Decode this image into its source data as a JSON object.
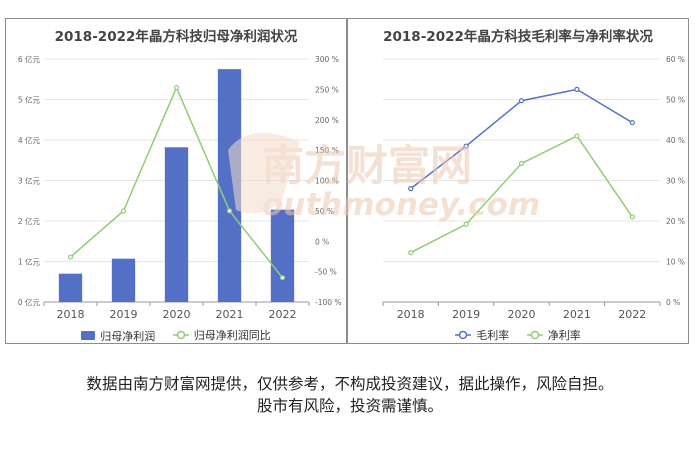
{
  "colors": {
    "bar": "#5470c6",
    "line_green": "#91cc75",
    "line_blue": "#5470c6",
    "grid": "#e6e6e6",
    "watermark": "#f3d6c2"
  },
  "watermark": {
    "cn": "南方财富网",
    "en": "outhmoney.com"
  },
  "chart_data": [
    {
      "type": "bar",
      "title": "2018-2022年晶方科技归母净利润状况",
      "categories": [
        "2018",
        "2019",
        "2020",
        "2021",
        "2022"
      ],
      "series": [
        {
          "name": "归母净利润",
          "type": "bar",
          "axis": "left",
          "values": [
            0.7,
            1.07,
            3.82,
            5.75,
            2.28
          ]
        },
        {
          "name": "归母净利润同比",
          "type": "line",
          "axis": "right",
          "values": [
            -26,
            50,
            253,
            50,
            -60
          ]
        }
      ],
      "y_left": {
        "ticks": [
          "0 亿元",
          "1 亿元",
          "2 亿元",
          "3 亿元",
          "4 亿元",
          "5 亿元",
          "6 亿元"
        ],
        "range": [
          0,
          6
        ]
      },
      "y_right": {
        "ticks": [
          "-100 %",
          "-50 %",
          "0 %",
          "50 %",
          "100 %",
          "150 %",
          "200 %",
          "250 %",
          "300 %"
        ],
        "range": [
          -100,
          300
        ]
      },
      "legend_position": "bottom",
      "grid": true
    },
    {
      "type": "line",
      "title": "2018-2022年晶方科技毛利率与净利率状况",
      "categories": [
        "2018",
        "2019",
        "2020",
        "2021",
        "2022"
      ],
      "series": [
        {
          "name": "毛利率",
          "values": [
            28,
            38.5,
            49.7,
            52.5,
            44.3
          ]
        },
        {
          "name": "净利率",
          "values": [
            12.2,
            19.2,
            34.2,
            41,
            21
          ]
        }
      ],
      "y_right": {
        "ticks": [
          "0 %",
          "10 %",
          "20 %",
          "30 %",
          "40 %",
          "50 %",
          "60 %"
        ],
        "range": [
          0,
          60
        ]
      },
      "legend_position": "bottom",
      "grid": true
    }
  ],
  "disclaimer": {
    "line1": "数据由南方财富网提供，仅供参考，不构成投资建议，据此操作，风险自担。",
    "line2": "股市有风险，投资需谨慎。"
  }
}
